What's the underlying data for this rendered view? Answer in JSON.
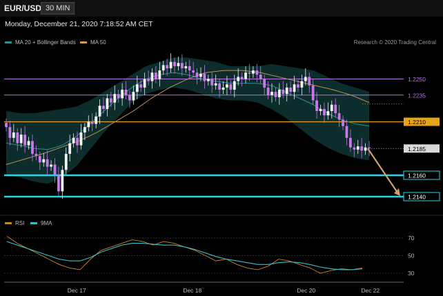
{
  "header": {
    "symbol": "EUR/USD",
    "timeframe": "30 MIN",
    "datetime": "Monday, December 21, 2020 7:18:52 AM CET"
  },
  "legend": {
    "ma20_label": "MA 20 + Bollinger Bands",
    "ma50_label": "MA 50",
    "credit": "Research © 2020 Trading Central"
  },
  "rsi_legend": {
    "rsi_label": "RSI",
    "ma_label": "9MA"
  },
  "colors": {
    "background": "#000000",
    "bull": "#f2f2f2",
    "bear": "#c779e8",
    "ma20": "#2e8f8f",
    "ma50": "#b89258",
    "band": "#0e2e2e",
    "level_cyan": "#22d8e6",
    "level_orange": "#e8a317",
    "level_purple": "#7a4fb8",
    "arrow": "#d3a069",
    "rsi": "#c7882a",
    "rsi_ma": "#33c0cc"
  },
  "chart_data": [
    {
      "type": "candlestick",
      "title": "EUR/USD",
      "x_ticks": [
        "Dec 17",
        "Dec 18",
        "Dec 20",
        "Dec 22"
      ],
      "ylim": [
        1.2125,
        1.2275
      ],
      "levels": [
        {
          "value": 1.225,
          "label": "1.2250",
          "color": "#b675e6",
          "style": "thin"
        },
        {
          "value": 1.2235,
          "label": "1.2235",
          "color": "#b675e6",
          "style": "thin"
        },
        {
          "value": 1.221,
          "label": "1.2210",
          "color": "#e8a317",
          "style": "filled"
        },
        {
          "value": 1.2185,
          "label": "1.2185",
          "color": "#d9d9d9",
          "style": "current"
        },
        {
          "value": 1.216,
          "label": "1.2160",
          "color": "#22d8e6",
          "style": "thick"
        },
        {
          "value": 1.214,
          "label": "1.2140",
          "color": "#22d8e6",
          "style": "thick"
        }
      ],
      "close_path": [
        1.2205,
        1.2195,
        1.22,
        1.219,
        1.2198,
        1.2188,
        1.2192,
        1.218,
        1.2178,
        1.2172,
        1.2175,
        1.2168,
        1.217,
        1.216,
        1.2145,
        1.2165,
        1.218,
        1.219,
        1.2195,
        1.2188,
        1.22,
        1.2205,
        1.221,
        1.2208,
        1.2215,
        1.2225,
        1.2222,
        1.2232,
        1.2228,
        1.2236,
        1.2232,
        1.224,
        1.2235,
        1.223,
        1.2238,
        1.2245,
        1.2242,
        1.225,
        1.2248,
        1.2256,
        1.225,
        1.2258,
        1.2263,
        1.226,
        1.2266,
        1.2262,
        1.2265,
        1.226,
        1.2262,
        1.2258,
        1.2256,
        1.2252,
        1.2255,
        1.2248,
        1.225,
        1.2244,
        1.2246,
        1.224,
        1.2242,
        1.2245,
        1.224,
        1.2248,
        1.2252,
        1.225,
        1.2256,
        1.2255,
        1.2258,
        1.2254,
        1.225,
        1.2242,
        1.2235,
        1.2238,
        1.2233,
        1.224,
        1.2236,
        1.2242,
        1.2238,
        1.2245,
        1.2242,
        1.2248,
        1.2252,
        1.2244,
        1.223,
        1.222,
        1.2222,
        1.2216,
        1.222,
        1.2226,
        1.2218,
        1.2212,
        1.2206,
        1.2195,
        1.2186,
        1.2184,
        1.2187,
        1.2183,
        1.2186,
        1.2185
      ],
      "band_upper": [
        1.222,
        1.2218,
        1.2218,
        1.222,
        1.2222,
        1.2224,
        1.223,
        1.2238,
        1.2246,
        1.2254,
        1.2262,
        1.2266,
        1.227,
        1.227,
        1.2268,
        1.2266,
        1.2262,
        1.2262,
        1.2262,
        1.2264,
        1.2262,
        1.226,
        1.2258,
        1.2252,
        1.2246,
        1.2242,
        1.2238
      ],
      "band_lower": [
        1.216,
        1.2158,
        1.2154,
        1.2152,
        1.2158,
        1.2168,
        1.2184,
        1.22,
        1.2214,
        1.2228,
        1.2236,
        1.224,
        1.2242,
        1.224,
        1.2236,
        1.2232,
        1.223,
        1.223,
        1.2228,
        1.2222,
        1.2214,
        1.2204,
        1.2194,
        1.2186,
        1.218,
        1.2176,
        1.2174
      ],
      "ma20": [
        1.219,
        1.2188,
        1.2185,
        1.2184,
        1.2188,
        1.2196,
        1.2208,
        1.222,
        1.2232,
        1.2242,
        1.225,
        1.2254,
        1.2256,
        1.2254,
        1.225,
        1.2248,
        1.2246,
        1.2246,
        1.2246,
        1.2244,
        1.2238,
        1.2232,
        1.2226,
        1.2218,
        1.2212,
        1.2208,
        1.2206
      ],
      "ma50": [
        1.217,
        1.2175,
        1.218,
        1.2186,
        1.2192,
        1.22,
        1.221,
        1.222,
        1.2232,
        1.2242,
        1.225,
        1.2256,
        1.2258,
        1.2258,
        1.2256,
        1.2252,
        1.2248,
        1.2244,
        1.224,
        1.2235,
        1.2228
      ],
      "forecast": {
        "from": 1.2185,
        "to": 1.214
      }
    },
    {
      "type": "line",
      "title": "RSI",
      "ylim": [
        20,
        80
      ],
      "y_ticks": [
        70,
        50,
        30
      ],
      "series": [
        {
          "name": "RSI",
          "values": [
            72,
            64,
            58,
            52,
            46,
            40,
            36,
            34,
            46,
            56,
            60,
            64,
            68,
            66,
            62,
            66,
            64,
            60,
            56,
            50,
            44,
            46,
            40,
            36,
            34,
            38,
            46,
            44,
            40,
            36,
            30,
            33,
            35,
            34,
            36
          ]
        },
        {
          "name": "9MA",
          "values": [
            66,
            62,
            58,
            54,
            50,
            46,
            44,
            44,
            48,
            54,
            58,
            62,
            64,
            64,
            63,
            62,
            62,
            60,
            57,
            53,
            49,
            46,
            44,
            42,
            40,
            40,
            42,
            43,
            42,
            40,
            37,
            35,
            34,
            34,
            35
          ]
        }
      ]
    }
  ]
}
